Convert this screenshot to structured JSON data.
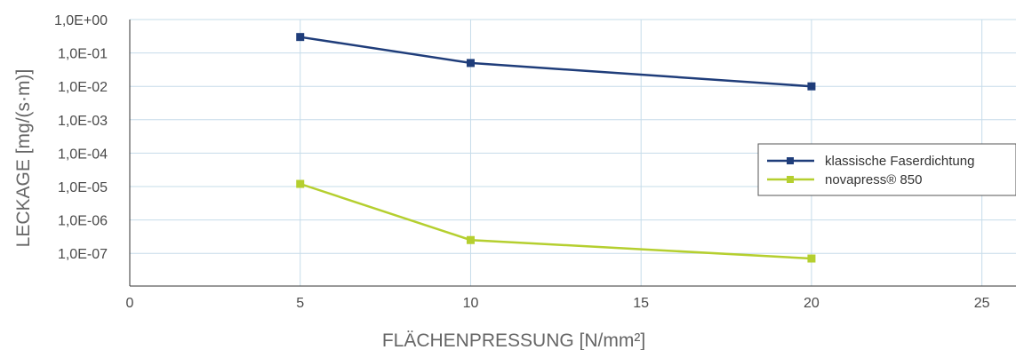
{
  "chart_data": {
    "type": "line",
    "xlabel": "FLÄCHENPRESSUNG [N/mm²]",
    "ylabel": "LECKAGE [mg/(s·m)]",
    "xlim": [
      0,
      26
    ],
    "x_ticks": [
      "0",
      "5",
      "10",
      "15",
      "20",
      "25"
    ],
    "y_scale": "log",
    "y_ticks": [
      "1,0E+00",
      "1,0E-01",
      "1,0E-02",
      "1,0E-03",
      "1,0E-04",
      "1,0E-05",
      "1,0E-06",
      "1,0E-07"
    ],
    "grid": true,
    "legend_position": "right",
    "series": [
      {
        "name": "klassische Faserdichtung",
        "color": "#1f3d7a",
        "x": [
          5,
          10,
          20
        ],
        "y": [
          0.3,
          0.05,
          0.01
        ]
      },
      {
        "name": "novapress® 850",
        "color": "#b5cf2f",
        "x": [
          5,
          10,
          20
        ],
        "y": [
          1.2e-05,
          2.5e-07,
          7e-08
        ]
      }
    ]
  }
}
